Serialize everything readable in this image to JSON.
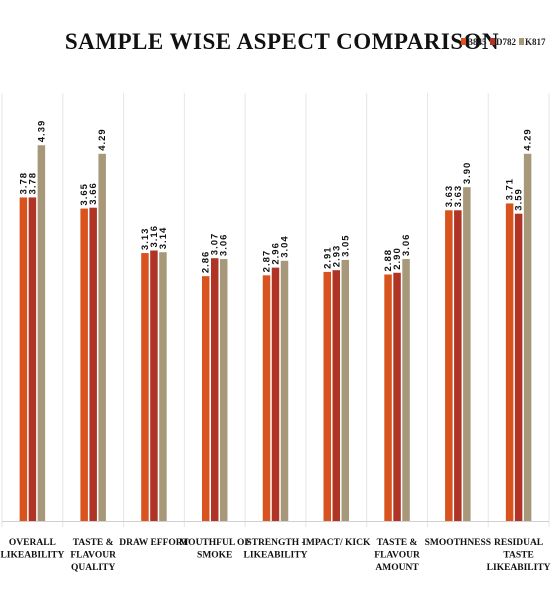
{
  "chart_data": {
    "type": "bar",
    "title": "SAMPLE WISE ASPECT COMPARISON",
    "categories": [
      [
        "OVERALL",
        "LIKEABILITY"
      ],
      [
        "TASTE &",
        "FLAVOUR",
        "QUALITY"
      ],
      [
        "DRAW EFFORT"
      ],
      [
        "MOUTHFUL OF",
        "SMOKE"
      ],
      [
        "STRENGTH -",
        "LIKEABILITY"
      ],
      [
        "IMPACT/ KICK"
      ],
      [
        "TASTE &",
        "FLAVOUR",
        "AMOUNT"
      ],
      [
        "SMOOTHNESS"
      ],
      [
        "RESIDUAL",
        "TASTE",
        "LIKEABILITY"
      ]
    ],
    "series": [
      {
        "name": "B845",
        "color": "#d9531e",
        "values": [
          3.78,
          3.65,
          3.13,
          2.86,
          2.87,
          2.91,
          2.88,
          3.63,
          3.71
        ]
      },
      {
        "name": "D782",
        "color": "#b03426",
        "values": [
          3.78,
          3.66,
          3.16,
          3.07,
          2.96,
          2.93,
          2.9,
          3.63,
          3.59
        ]
      },
      {
        "name": "K817",
        "color": "#a8987a",
        "values": [
          4.39,
          4.29,
          3.14,
          3.06,
          3.04,
          3.05,
          3.06,
          3.9,
          4.29
        ]
      }
    ],
    "data_labels": [
      [
        "3.78",
        "3.65",
        "3.13",
        "2.86",
        "2.87",
        "2.91",
        "2.88",
        "3.63",
        "3.71"
      ],
      [
        "3.78",
        "3.66",
        "3.16",
        "3.07",
        "2.96",
        "2.93",
        "2.90",
        "3.63",
        "3.59"
      ],
      [
        "4.39",
        "4.29",
        "3.14",
        "3.06",
        "3.04",
        "3.05",
        "3.06",
        "3.90",
        "4.29"
      ]
    ],
    "ylim": [
      0,
      5
    ],
    "legend": "top-right",
    "grid": "vertical separators"
  }
}
